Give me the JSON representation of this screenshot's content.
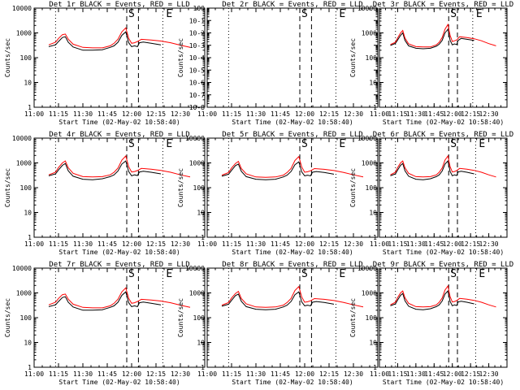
{
  "chart_data": {
    "type": "line",
    "x_ticks": [
      "11:00",
      "11:15",
      "11:30",
      "11:45",
      "12:00",
      "12:15",
      "12:30"
    ],
    "xlabel": "Start Time (02-May-02 10:58:40)",
    "ylabel": "Counts/sec",
    "y_scale": "log",
    "marker_labels": [
      "S",
      "E"
    ],
    "colors": {
      "events": "#000000",
      "lld": "#ff0000",
      "axes": "#000000"
    },
    "panels": [
      {
        "title": "Det 1r BLACK = Events, RED = LLD",
        "ylim": [
          1,
          10000
        ],
        "y_ticks": [
          "1",
          "10",
          "100",
          "1000",
          "10000"
        ],
        "dotted_x": [
          11.22,
          12.32
        ],
        "dashed_x": [
          11.95,
          12.07
        ],
        "events": {
          "x": [
            11.15,
            11.22,
            11.25,
            11.29,
            11.32,
            11.35,
            11.4,
            11.5,
            11.6,
            11.7,
            11.78,
            11.82,
            11.86,
            11.9,
            11.94,
            11.97,
            12.0,
            12.03,
            12.06,
            12.08,
            12.12,
            12.2,
            12.3
          ],
          "y": [
            280,
            330,
            450,
            650,
            700,
            420,
            270,
            200,
            200,
            210,
            260,
            300,
            420,
            800,
            1100,
            400,
            280,
            300,
            280,
            400,
            430,
            380,
            330
          ]
        },
        "lld": {
          "x": [
            11.15,
            11.22,
            11.25,
            11.29,
            11.32,
            11.35,
            11.4,
            11.5,
            11.6,
            11.7,
            11.78,
            11.82,
            11.86,
            11.9,
            11.94,
            11.97,
            12.0,
            12.03,
            12.06,
            12.1,
            12.2,
            12.3,
            12.4,
            12.5,
            12.6
          ],
          "y": [
            330,
            420,
            600,
            850,
            900,
            560,
            350,
            260,
            250,
            250,
            300,
            380,
            560,
            1100,
            1600,
            600,
            380,
            400,
            450,
            550,
            520,
            470,
            400,
            320,
            260
          ]
        }
      },
      {
        "title": "Det 2r BLACK = Events, RED = LLD",
        "ylim": [
          1e-08,
          1
        ],
        "y_ticks": [
          "10-8",
          "10-7",
          "10-6",
          "10-5",
          "10-4",
          "10-3",
          "10-2",
          "10-1",
          "100"
        ],
        "dotted_x": [
          11.22,
          12.32
        ],
        "dashed_x": [
          11.95,
          12.07
        ],
        "events": {
          "x": [],
          "y": []
        },
        "lld": {
          "x": [],
          "y": []
        }
      },
      {
        "title": "Det 3r BLACK = Events, RED = LLD",
        "ylim": [
          1,
          10000
        ],
        "y_ticks": [
          "1",
          "10",
          "100",
          "1000",
          "10000"
        ],
        "dotted_x": [
          11.22,
          12.28
        ],
        "dashed_x": [
          11.95,
          12.07
        ],
        "events": {
          "x": [
            11.15,
            11.22,
            11.25,
            11.29,
            11.32,
            11.35,
            11.4,
            11.5,
            11.6,
            11.7,
            11.78,
            11.82,
            11.86,
            11.9,
            11.94,
            11.97,
            12.0,
            12.03,
            12.06,
            12.08,
            12.12,
            12.2,
            12.3
          ],
          "y": [
            310,
            380,
            520,
            800,
            1000,
            500,
            300,
            240,
            230,
            240,
            290,
            350,
            500,
            1000,
            1400,
            500,
            330,
            360,
            340,
            500,
            600,
            550,
            500
          ]
        },
        "lld": {
          "x": [
            11.15,
            11.22,
            11.25,
            11.29,
            11.32,
            11.35,
            11.4,
            11.5,
            11.6,
            11.7,
            11.78,
            11.82,
            11.86,
            11.9,
            11.94,
            11.97,
            12.0,
            12.03,
            12.06,
            12.1,
            12.2,
            12.3,
            12.4,
            12.5,
            12.6
          ],
          "y": [
            340,
            420,
            620,
            1000,
            1250,
            620,
            360,
            280,
            270,
            270,
            330,
            420,
            650,
            1400,
            2200,
            800,
            450,
            480,
            520,
            700,
            650,
            580,
            480,
            370,
            300
          ]
        }
      },
      {
        "title": "Det 4r BLACK = Events, RED = LLD",
        "ylim": [
          1,
          10000
        ],
        "y_ticks": [
          "1",
          "10",
          "100",
          "1000",
          "10000"
        ],
        "dotted_x": [
          11.22,
          12.32
        ],
        "dashed_x": [
          11.95,
          12.07
        ],
        "events": {
          "x": [
            11.15,
            11.22,
            11.25,
            11.29,
            11.32,
            11.35,
            11.4,
            11.5,
            11.6,
            11.7,
            11.78,
            11.82,
            11.86,
            11.9,
            11.94,
            11.97,
            12.0,
            12.03,
            12.06,
            12.08,
            12.12,
            12.2,
            12.3
          ],
          "y": [
            300,
            360,
            520,
            800,
            950,
            480,
            290,
            220,
            210,
            230,
            280,
            330,
            470,
            900,
            1200,
            450,
            300,
            330,
            310,
            430,
            460,
            420,
            360
          ]
        },
        "lld": {
          "x": [
            11.15,
            11.22,
            11.25,
            11.29,
            11.32,
            11.35,
            11.4,
            11.5,
            11.6,
            11.7,
            11.78,
            11.82,
            11.86,
            11.9,
            11.94,
            11.97,
            12.0,
            12.03,
            12.06,
            12.1,
            12.2,
            12.3,
            12.4,
            12.5,
            12.6
          ],
          "y": [
            330,
            420,
            650,
            1000,
            1200,
            640,
            380,
            280,
            270,
            280,
            330,
            420,
            620,
            1300,
            1900,
            700,
            430,
            450,
            490,
            600,
            560,
            500,
            420,
            330,
            270
          ]
        }
      },
      {
        "title": "Det 5r BLACK = Events, RED = LLD",
        "ylim": [
          1,
          10000
        ],
        "y_ticks": [
          "1",
          "10",
          "100",
          "1000",
          "10000"
        ],
        "dotted_x": [
          11.22,
          12.32
        ],
        "dashed_x": [
          11.95,
          12.07
        ],
        "events": {
          "x": [
            11.15,
            11.22,
            11.25,
            11.29,
            11.32,
            11.35,
            11.4,
            11.5,
            11.6,
            11.7,
            11.78,
            11.82,
            11.86,
            11.9,
            11.94,
            11.97,
            12.0,
            12.03,
            12.06,
            12.08,
            12.12,
            12.2,
            12.3
          ],
          "y": [
            290,
            350,
            500,
            780,
            900,
            460,
            280,
            220,
            210,
            220,
            270,
            320,
            450,
            850,
            1100,
            430,
            300,
            320,
            300,
            420,
            450,
            410,
            350
          ]
        },
        "lld": {
          "x": [
            11.15,
            11.22,
            11.25,
            11.29,
            11.32,
            11.35,
            11.4,
            11.5,
            11.6,
            11.7,
            11.78,
            11.82,
            11.86,
            11.9,
            11.94,
            11.97,
            12.0,
            12.03,
            12.06,
            12.1,
            12.2,
            12.3,
            12.4,
            12.5,
            12.6
          ],
          "y": [
            320,
            410,
            620,
            950,
            1150,
            600,
            360,
            270,
            260,
            270,
            320,
            410,
            600,
            1250,
            1800,
            680,
            420,
            440,
            480,
            590,
            550,
            490,
            410,
            330,
            270
          ]
        }
      },
      {
        "title": "Det 6r BLACK = Events, RED = LLD",
        "ylim": [
          1,
          10000
        ],
        "y_ticks": [
          "1",
          "10",
          "100",
          "1000",
          "10000"
        ],
        "dotted_x": [
          11.22,
          12.32
        ],
        "dashed_x": [
          11.95,
          12.07
        ],
        "events": {
          "x": [
            11.15,
            11.22,
            11.25,
            11.29,
            11.32,
            11.35,
            11.4,
            11.5,
            11.6,
            11.7,
            11.78,
            11.82,
            11.86,
            11.9,
            11.94,
            11.97,
            12.0,
            12.03,
            12.06,
            12.08,
            12.12,
            12.2,
            12.3
          ],
          "y": [
            300,
            360,
            520,
            800,
            950,
            480,
            290,
            220,
            210,
            230,
            280,
            330,
            470,
            900,
            1200,
            450,
            300,
            330,
            310,
            430,
            460,
            420,
            360
          ]
        },
        "lld": {
          "x": [
            11.15,
            11.22,
            11.25,
            11.29,
            11.32,
            11.35,
            11.4,
            11.5,
            11.6,
            11.7,
            11.78,
            11.82,
            11.86,
            11.9,
            11.94,
            11.97,
            12.0,
            12.03,
            12.06,
            12.1,
            12.2,
            12.3,
            12.4,
            12.5,
            12.6
          ],
          "y": [
            330,
            420,
            650,
            1000,
            1200,
            640,
            380,
            280,
            270,
            280,
            330,
            420,
            620,
            1300,
            1900,
            700,
            430,
            450,
            490,
            600,
            560,
            500,
            420,
            330,
            270
          ]
        }
      },
      {
        "title": "Det 7r BLACK = Events, RED = LLD",
        "ylim": [
          1,
          10000
        ],
        "y_ticks": [
          "1",
          "10",
          "100",
          "1000",
          "10000"
        ],
        "dotted_x": [
          11.22,
          12.32
        ],
        "dashed_x": [
          11.95,
          12.07
        ],
        "events": {
          "x": [
            11.15,
            11.22,
            11.25,
            11.29,
            11.32,
            11.35,
            11.4,
            11.5,
            11.6,
            11.7,
            11.78,
            11.82,
            11.86,
            11.9,
            11.94,
            11.97,
            12.0,
            12.03,
            12.06,
            12.08,
            12.12,
            12.2,
            12.3
          ],
          "y": [
            280,
            330,
            450,
            650,
            700,
            420,
            270,
            200,
            200,
            210,
            260,
            300,
            420,
            800,
            1100,
            400,
            280,
            300,
            280,
            400,
            430,
            380,
            330
          ]
        },
        "lld": {
          "x": [
            11.15,
            11.22,
            11.25,
            11.29,
            11.32,
            11.35,
            11.4,
            11.5,
            11.6,
            11.7,
            11.78,
            11.82,
            11.86,
            11.9,
            11.94,
            11.97,
            12.0,
            12.03,
            12.06,
            12.1,
            12.2,
            12.3,
            12.4,
            12.5,
            12.6
          ],
          "y": [
            330,
            420,
            600,
            850,
            900,
            560,
            350,
            260,
            250,
            250,
            300,
            380,
            560,
            1100,
            1600,
            600,
            380,
            400,
            450,
            550,
            520,
            470,
            400,
            320,
            260
          ]
        }
      },
      {
        "title": "Det 8r BLACK = Events, RED = LLD",
        "ylim": [
          1,
          10000
        ],
        "y_ticks": [
          "1",
          "10",
          "100",
          "1000",
          "10000"
        ],
        "dotted_x": [
          11.22,
          12.32
        ],
        "dashed_x": [
          11.95,
          12.07
        ],
        "events": {
          "x": [
            11.15,
            11.22,
            11.25,
            11.29,
            11.32,
            11.35,
            11.4,
            11.5,
            11.6,
            11.7,
            11.78,
            11.82,
            11.86,
            11.9,
            11.94,
            11.97,
            12.0,
            12.03,
            12.06,
            12.08,
            12.12,
            12.2,
            12.3
          ],
          "y": [
            290,
            350,
            500,
            780,
            900,
            460,
            280,
            220,
            210,
            220,
            270,
            320,
            450,
            850,
            1100,
            430,
            300,
            320,
            300,
            420,
            450,
            410,
            350
          ]
        },
        "lld": {
          "x": [
            11.15,
            11.22,
            11.25,
            11.29,
            11.32,
            11.35,
            11.4,
            11.5,
            11.6,
            11.7,
            11.78,
            11.82,
            11.86,
            11.9,
            11.94,
            11.97,
            12.0,
            12.03,
            12.06,
            12.1,
            12.2,
            12.3,
            12.4,
            12.5,
            12.6
          ],
          "y": [
            320,
            410,
            620,
            950,
            1150,
            600,
            360,
            270,
            260,
            270,
            320,
            410,
            600,
            1250,
            1800,
            680,
            420,
            440,
            480,
            590,
            550,
            490,
            410,
            330,
            270
          ]
        }
      },
      {
        "title": "Det 9r BLACK = Events, RED = LLD",
        "ylim": [
          1,
          10000
        ],
        "y_ticks": [
          "1",
          "10",
          "100",
          "1000",
          "10000"
        ],
        "dotted_x": [
          11.22,
          12.32
        ],
        "dashed_x": [
          11.95,
          12.07
        ],
        "events": {
          "x": [
            11.15,
            11.22,
            11.25,
            11.29,
            11.32,
            11.35,
            11.4,
            11.5,
            11.6,
            11.7,
            11.78,
            11.82,
            11.86,
            11.9,
            11.94,
            11.97,
            12.0,
            12.03,
            12.06,
            12.08,
            12.12,
            12.2,
            12.3
          ],
          "y": [
            300,
            360,
            520,
            800,
            950,
            480,
            290,
            220,
            210,
            230,
            280,
            330,
            470,
            900,
            1200,
            450,
            300,
            330,
            310,
            430,
            460,
            420,
            360
          ]
        },
        "lld": {
          "x": [
            11.15,
            11.22,
            11.25,
            11.29,
            11.32,
            11.35,
            11.4,
            11.5,
            11.6,
            11.7,
            11.78,
            11.82,
            11.86,
            11.9,
            11.94,
            11.97,
            12.0,
            12.03,
            12.06,
            12.1,
            12.2,
            12.3,
            12.4,
            12.5,
            12.6
          ],
          "y": [
            330,
            420,
            650,
            1000,
            1200,
            640,
            380,
            280,
            270,
            280,
            330,
            420,
            620,
            1300,
            1900,
            700,
            430,
            450,
            490,
            600,
            560,
            500,
            420,
            330,
            270
          ]
        }
      }
    ]
  }
}
